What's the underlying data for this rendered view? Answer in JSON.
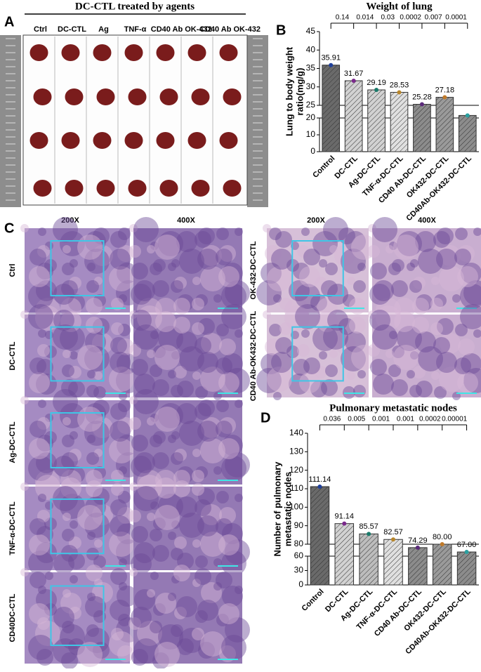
{
  "panel_letters": [
    "A",
    "B",
    "C",
    "D"
  ],
  "panel_a": {
    "title": "DC-CTL treated by agents",
    "columns": [
      "Ctrl",
      "DC-CTL",
      "Ag",
      "TNF-α",
      "CD40 Ab",
      "OK-432",
      "CD40 Ab OK-432"
    ]
  },
  "panel_c": {
    "magnifications": [
      "200X",
      "400X",
      "200X",
      "400X"
    ],
    "left_rows": [
      "Ctrl",
      "DC-CTL",
      "Ag-DC-CTL",
      "TNF-α-DC-CTL",
      "CD40DC-CTL"
    ],
    "right_rows": [
      "OK-432-DC-CTL",
      "CD40 Ab-OK432-DC-CTL"
    ]
  },
  "chart_data": [
    {
      "type": "bar",
      "title": "Weight of lung",
      "ylabel": [
        "Lung to body weight",
        "ratio(mg/g)"
      ],
      "categories": [
        "Control",
        "DC-CTL",
        "Ag-DC-CTL",
        "TNF-α-DC-CTL",
        "CD40 Ab-DC-CTL",
        "OK432-DC-CTL",
        "CD40Ab-OK432-DC-CTL"
      ],
      "values": [
        35.91,
        31.67,
        29.19,
        28.53,
        25.28,
        27.18,
        21
      ],
      "value_labels": [
        "35.91",
        "31.67",
        "29.19",
        "28.53",
        "25.28",
        "27.18",
        null
      ],
      "p_values": [
        "0.14",
        "0.014",
        "0.03",
        "0.0002",
        "0.007",
        "0.0001"
      ],
      "bar_colors": [
        "#6a6a6a",
        "#d2d2d2",
        "#d2d2d2",
        "#e0e0e0",
        "#8c8c8c",
        "#9a9a9a",
        "#8c8c8c"
      ],
      "point_colors": [
        "#1f3f9a",
        "#7b2a8c",
        "#1a7a6a",
        "#b8862a",
        "#5a2a7a",
        "#c07a2a",
        "#2aa0a0"
      ],
      "ylim": [
        0,
        45
      ],
      "y_break": [
        20,
        25
      ],
      "yticks": [
        0,
        10,
        20,
        25,
        30,
        35,
        40,
        45
      ]
    },
    {
      "type": "bar",
      "title": "Pulmonary metastatic nodes",
      "ylabel": [
        "Number of pulmonary",
        "metastatic nodes"
      ],
      "categories": [
        "Control",
        "DC-CTL",
        "Ag-DC-CTL",
        "TNF-α-DC-CTL",
        "CD40 Ab-DC-CTL",
        "OK432-DC-CTL",
        "CD40Ab-OK432-DC-CTL"
      ],
      "values": [
        111.14,
        91.14,
        85.57,
        82.57,
        74.29,
        80.0,
        67.0
      ],
      "value_labels": [
        "111.14",
        "91.14",
        "85.57",
        "82.57",
        "74.29",
        "80.00",
        "67.00"
      ],
      "p_values": [
        "0.036",
        "0.005",
        "0.001",
        "0.001",
        "0.0002",
        "0.00001"
      ],
      "bar_colors": [
        "#6a6a6a",
        "#d2d2d2",
        "#bdbdbd",
        "#e0e0e0",
        "#8c8c8c",
        "#9a9a9a",
        "#8c8c8c"
      ],
      "point_colors": [
        "#1f3f9a",
        "#7b2a8c",
        "#1a7a6a",
        "#b8862a",
        "#5a2a7a",
        "#c07a2a",
        "#2aa0a0"
      ],
      "ylim": [
        0,
        140
      ],
      "y_break": [
        60,
        80
      ],
      "yticks": [
        0,
        30,
        60,
        80,
        90,
        100,
        110,
        120,
        130,
        140
      ]
    }
  ]
}
